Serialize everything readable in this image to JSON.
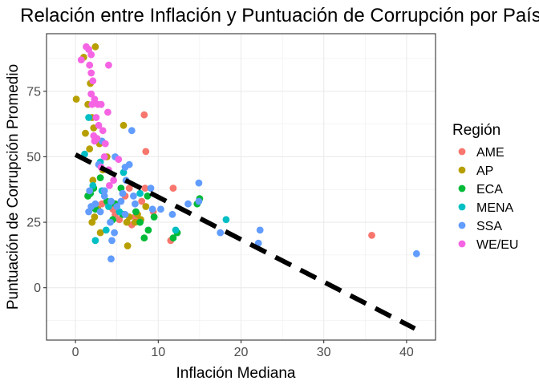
{
  "chart_data": {
    "type": "scatter",
    "title": "Relación entre Inflación y Puntuación de Corrupción por País",
    "xlabel": "Inflación Mediana",
    "ylabel": "Puntuación de Corrupción Promedio",
    "xlim": [
      -3.5,
      43.5
    ],
    "ylim": [
      -20,
      97
    ],
    "x_ticks": [
      0,
      10,
      20,
      30,
      40
    ],
    "y_ticks": [
      0,
      25,
      50,
      75
    ],
    "grid": true,
    "legend_position": "right",
    "legend_title": "Región",
    "series": [
      {
        "name": "AME",
        "color": "#F8766D",
        "points": [
          [
            8.3,
            66
          ],
          [
            8.5,
            52
          ],
          [
            8.4,
            38
          ],
          [
            11.8,
            38
          ],
          [
            11.5,
            18
          ],
          [
            6.5,
            38
          ],
          [
            6.0,
            35
          ],
          [
            4.5,
            30
          ],
          [
            3.2,
            32
          ],
          [
            7.2,
            27
          ],
          [
            8.0,
            33
          ],
          [
            6.8,
            24
          ],
          [
            9.4,
            29
          ],
          [
            35.8,
            20
          ],
          [
            5.3,
            26
          ],
          [
            4.8,
            28
          ]
        ]
      },
      {
        "name": "AP",
        "color": "#B79F00",
        "points": [
          [
            0.1,
            72
          ],
          [
            1.0,
            88
          ],
          [
            2.4,
            92
          ],
          [
            1.8,
            78
          ],
          [
            1.5,
            70
          ],
          [
            2.0,
            65
          ],
          [
            2.2,
            61
          ],
          [
            1.2,
            59
          ],
          [
            1.7,
            53
          ],
          [
            2.9,
            55
          ],
          [
            3.8,
            50
          ],
          [
            5.8,
            62
          ],
          [
            3.3,
            45
          ],
          [
            2.1,
            41
          ],
          [
            7.9,
            26
          ],
          [
            7.2,
            25
          ],
          [
            7.5,
            28
          ],
          [
            8.5,
            31
          ],
          [
            6.2,
            25
          ],
          [
            6.3,
            16
          ],
          [
            3.0,
            21
          ],
          [
            2.0,
            25
          ],
          [
            2.3,
            27
          ],
          [
            1.5,
            35
          ],
          [
            6.5,
            27
          ],
          [
            2.7,
            30
          ]
        ]
      },
      {
        "name": "ECA",
        "color": "#00BA38",
        "points": [
          [
            3.0,
            42
          ],
          [
            1.5,
            35
          ],
          [
            2.4,
            30
          ],
          [
            3.8,
            33
          ],
          [
            4.8,
            32
          ],
          [
            4.5,
            26
          ],
          [
            5.7,
            28
          ],
          [
            7.3,
            29
          ],
          [
            7.8,
            25
          ],
          [
            8.8,
            22
          ],
          [
            9.5,
            27
          ],
          [
            8.3,
            19
          ],
          [
            11.8,
            19
          ],
          [
            12.3,
            21
          ],
          [
            15.0,
            34
          ],
          [
            14.7,
            32
          ],
          [
            8.7,
            35
          ],
          [
            5.5,
            38
          ],
          [
            2.2,
            38
          ],
          [
            1.8,
            36
          ]
        ]
      },
      {
        "name": "MENA",
        "color": "#00BFC4",
        "points": [
          [
            1.1,
            51
          ],
          [
            1.6,
            65
          ],
          [
            3.0,
            48
          ],
          [
            2.4,
            18
          ],
          [
            4.0,
            31
          ],
          [
            3.7,
            22
          ],
          [
            5.3,
            29
          ],
          [
            7.8,
            36
          ],
          [
            12.1,
            22
          ],
          [
            18.2,
            26
          ],
          [
            3.2,
            37
          ],
          [
            5.8,
            44
          ],
          [
            2.1,
            39
          ]
        ]
      },
      {
        "name": "SSA",
        "color": "#619CFF",
        "points": [
          [
            1.7,
            37
          ],
          [
            2.4,
            32
          ],
          [
            3.0,
            29
          ],
          [
            3.5,
            35
          ],
          [
            4.3,
            33
          ],
          [
            5.0,
            31
          ],
          [
            5.5,
            33
          ],
          [
            6.0,
            28
          ],
          [
            6.8,
            60
          ],
          [
            6.5,
            47
          ],
          [
            6.0,
            46
          ],
          [
            7.0,
            35
          ],
          [
            4.8,
            50
          ],
          [
            3.5,
            37
          ],
          [
            2.8,
            47
          ],
          [
            3.2,
            56
          ],
          [
            4.7,
            21
          ],
          [
            4.2,
            25
          ],
          [
            4.3,
            11
          ],
          [
            4.4,
            18
          ],
          [
            5.7,
            36
          ],
          [
            7.2,
            32
          ],
          [
            9.3,
            30
          ],
          [
            10.3,
            30
          ],
          [
            11.7,
            28
          ],
          [
            13.6,
            32
          ],
          [
            14.9,
            40
          ],
          [
            14.9,
            33
          ],
          [
            17.5,
            21
          ],
          [
            22.3,
            22
          ],
          [
            22.1,
            17
          ],
          [
            41.2,
            13
          ],
          [
            9.1,
            38
          ],
          [
            6.1,
            41
          ],
          [
            1.9,
            31
          ],
          [
            1.6,
            29
          ]
        ]
      },
      {
        "name": "WE/EU",
        "color": "#F564E3",
        "points": [
          [
            0.7,
            87
          ],
          [
            1.3,
            92
          ],
          [
            1.6,
            91
          ],
          [
            1.9,
            89
          ],
          [
            1.7,
            85
          ],
          [
            1.9,
            82
          ],
          [
            2.1,
            79
          ],
          [
            1.9,
            74
          ],
          [
            2.3,
            72
          ],
          [
            2.7,
            70
          ],
          [
            3.1,
            70
          ],
          [
            2.5,
            65
          ],
          [
            2.8,
            62
          ],
          [
            3.3,
            60
          ],
          [
            3.6,
            55
          ],
          [
            4.0,
            85
          ],
          [
            3.9,
            67
          ],
          [
            2.2,
            58
          ],
          [
            2.6,
            57
          ],
          [
            3.1,
            46
          ],
          [
            4.0,
            45
          ],
          [
            4.1,
            39
          ],
          [
            4.6,
            41
          ],
          [
            5.2,
            49
          ],
          [
            3.5,
            50
          ],
          [
            2.0,
            70
          ],
          [
            2.3,
            56
          ]
        ]
      }
    ],
    "trend_line": {
      "style": "dashed",
      "color": "#000000",
      "x": [
        0,
        41
      ],
      "y": [
        50.8,
        -15.6
      ]
    }
  }
}
